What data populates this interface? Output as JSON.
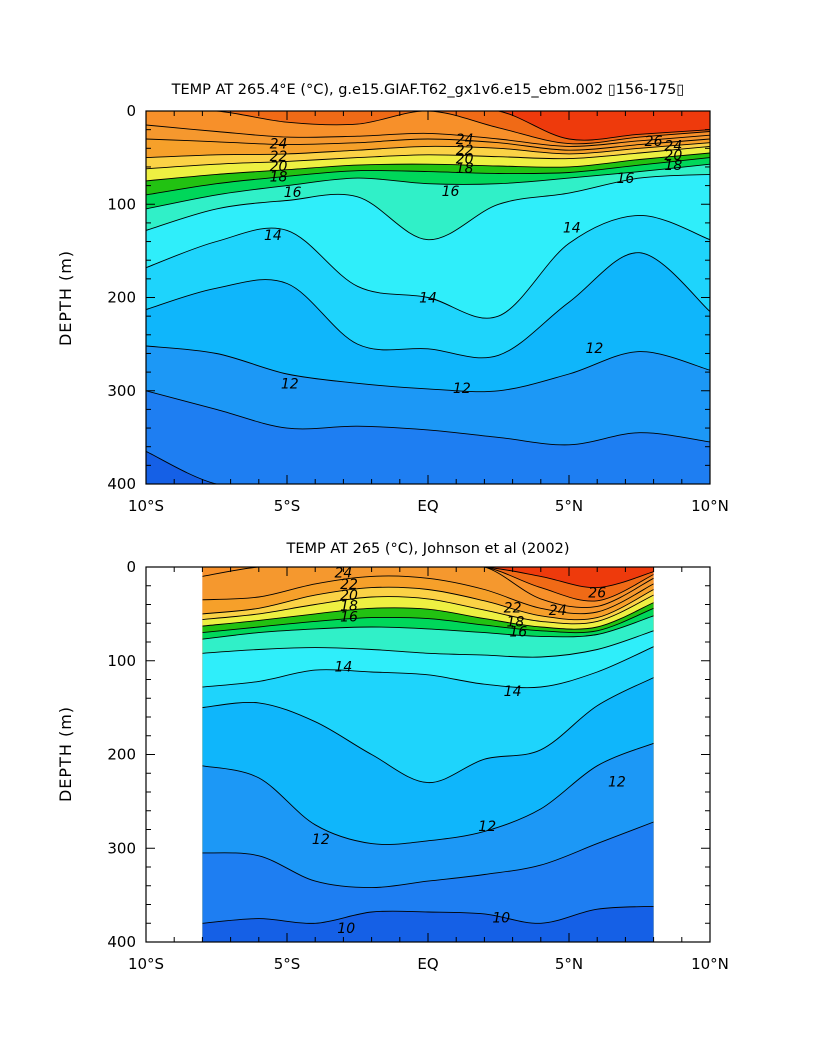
{
  "chart_data": [
    {
      "type": "contour",
      "title": "TEMP AT 265.4°E (°C), g.e15.GIAF.T62_gx1v6.e15_ebm.002 ▯156-175▯",
      "xlabel": "",
      "ylabel": "DEPTH (m)",
      "xlim": [
        -10,
        10
      ],
      "ylim": [
        400,
        0
      ],
      "x_tick_values": [
        -10,
        -5,
        0,
        5,
        10
      ],
      "x_tick_labels": [
        "10°S",
        "5°S",
        "EQ",
        "5°N",
        "10°N"
      ],
      "y_tick_values": [
        0,
        100,
        200,
        300,
        400
      ],
      "y_tick_labels": [
        "0",
        "100",
        "200",
        "300",
        "400"
      ],
      "data_extent_x": [
        -10,
        10
      ],
      "contour_interval": 1,
      "contour_labels": [
        {
          "text": "24",
          "x": -5.3,
          "y": 35
        },
        {
          "text": "22",
          "x": -5.3,
          "y": 48
        },
        {
          "text": "20",
          "x": -5.3,
          "y": 59
        },
        {
          "text": "18",
          "x": -5.3,
          "y": 70
        },
        {
          "text": "16",
          "x": -4.8,
          "y": 87
        },
        {
          "text": "14",
          "x": -5.5,
          "y": 133
        },
        {
          "text": "16",
          "x": 0.8,
          "y": 86
        },
        {
          "text": "24",
          "x": 1.3,
          "y": 30
        },
        {
          "text": "22",
          "x": 1.3,
          "y": 42
        },
        {
          "text": "20",
          "x": 1.3,
          "y": 51
        },
        {
          "text": "18",
          "x": 1.3,
          "y": 61
        },
        {
          "text": "26",
          "x": 8.0,
          "y": 32
        },
        {
          "text": "24",
          "x": 8.7,
          "y": 37
        },
        {
          "text": "20",
          "x": 8.7,
          "y": 47
        },
        {
          "text": "18",
          "x": 8.7,
          "y": 58
        },
        {
          "text": "16",
          "x": 7.0,
          "y": 72
        },
        {
          "text": "14",
          "x": 5.1,
          "y": 125
        },
        {
          "text": "14",
          "x": 0.0,
          "y": 200
        },
        {
          "text": "12",
          "x": 5.9,
          "y": 254
        },
        {
          "text": "12",
          "x": -4.9,
          "y": 292
        },
        {
          "text": "12",
          "x": 1.2,
          "y": 297
        }
      ],
      "temperature_field": {
        "x": [
          -10,
          -7.5,
          -5,
          -2.5,
          0,
          2.5,
          5,
          7.5,
          10
        ],
        "isotherm_depths": [
          {
            "level": 27,
            "depths": [
              0,
              0,
              0,
              0,
              0,
              0,
              30,
              25,
              20
            ]
          },
          {
            "level": 26,
            "depths": [
              0,
              0,
              12,
              14,
              0,
              18,
              35,
              28,
              22
            ]
          },
          {
            "level": 25,
            "depths": [
              15,
              22,
              28,
              27,
              24,
              30,
              38,
              32,
              26
            ]
          },
          {
            "level": 24,
            "depths": [
              30,
              33,
              36,
              34,
              30,
              34,
              42,
              36,
              30
            ]
          },
          {
            "level": 22,
            "depths": [
              50,
              47,
              46,
              42,
              38,
              40,
              46,
              40,
              34
            ]
          },
          {
            "level": 20,
            "depths": [
              62,
              57,
              54,
              50,
              47,
              49,
              51,
              45,
              38
            ]
          },
          {
            "level": 18,
            "depths": [
              75,
              68,
              63,
              58,
              57,
              59,
              60,
              52,
              45
            ]
          },
          {
            "level": 17,
            "depths": [
              90,
              78,
              70,
              64,
              65,
              67,
              66,
              58,
              50
            ]
          },
          {
            "level": 16,
            "depths": [
              105,
              90,
              80,
              72,
              78,
              78,
              72,
              65,
              57
            ]
          },
          {
            "level": 15,
            "depths": [
              128,
              105,
              96,
              92,
              138,
              100,
              88,
              72,
              68
            ]
          },
          {
            "level": 14,
            "depths": [
              168,
              140,
              128,
              188,
              200,
              220,
              142,
              112,
              138
            ]
          },
          {
            "level": 13,
            "depths": [
              213,
              190,
              185,
              250,
              255,
              262,
              205,
              152,
              215
            ]
          },
          {
            "level": 12,
            "depths": [
              252,
              260,
              282,
              292,
              298,
              300,
              282,
              258,
              278
            ]
          },
          {
            "level": 11,
            "depths": [
              300,
              320,
              340,
              338,
              342,
              350,
              358,
              345,
              355
            ]
          },
          {
            "level": 10,
            "depths": [
              365,
              400,
              420,
              420,
              420,
              420,
              420,
              420,
              420
            ]
          }
        ]
      }
    },
    {
      "type": "contour",
      "title": "TEMP AT 265 (°C), Johnson et al (2002)",
      "xlabel": "",
      "ylabel": "DEPTH (m)",
      "xlim": [
        -10,
        10
      ],
      "ylim": [
        400,
        0
      ],
      "x_tick_values": [
        -10,
        -5,
        0,
        5,
        10
      ],
      "x_tick_labels": [
        "10°S",
        "5°S",
        "EQ",
        "5°N",
        "10°N"
      ],
      "y_tick_values": [
        0,
        100,
        200,
        300,
        400
      ],
      "y_tick_labels": [
        "0",
        "100",
        "200",
        "300",
        "400"
      ],
      "data_extent_x": [
        -8,
        8
      ],
      "contour_interval": 1,
      "contour_labels": [
        {
          "text": "24",
          "x": -3.0,
          "y": 6
        },
        {
          "text": "22",
          "x": -2.8,
          "y": 18
        },
        {
          "text": "20",
          "x": -2.8,
          "y": 30
        },
        {
          "text": "18",
          "x": -2.8,
          "y": 41
        },
        {
          "text": "16",
          "x": -2.8,
          "y": 53
        },
        {
          "text": "14",
          "x": -3.0,
          "y": 106
        },
        {
          "text": "14",
          "x": 3.0,
          "y": 132
        },
        {
          "text": "22",
          "x": 3.0,
          "y": 43
        },
        {
          "text": "18",
          "x": 3.1,
          "y": 58
        },
        {
          "text": "16",
          "x": 3.2,
          "y": 69
        },
        {
          "text": "24",
          "x": 4.6,
          "y": 46
        },
        {
          "text": "26",
          "x": 6.0,
          "y": 27
        },
        {
          "text": "12",
          "x": 6.7,
          "y": 229
        },
        {
          "text": "12",
          "x": -3.8,
          "y": 290
        },
        {
          "text": "12",
          "x": 2.1,
          "y": 276
        },
        {
          "text": "10",
          "x": -2.9,
          "y": 385
        },
        {
          "text": "10",
          "x": 2.6,
          "y": 374
        }
      ],
      "temperature_field": {
        "x": [
          -8,
          -6,
          -4,
          -2,
          0,
          2,
          4,
          6,
          8
        ],
        "isotherm_depths": [
          {
            "level": 27,
            "depths": [
              0,
              0,
              0,
              0,
              0,
              0,
              10,
              22,
              5
            ]
          },
          {
            "level": 26,
            "depths": [
              0,
              0,
              0,
              0,
              0,
              0,
              22,
              36,
              8
            ]
          },
          {
            "level": 25,
            "depths": [
              10,
              0,
              0,
              0,
              0,
              0,
              34,
              42,
              12
            ]
          },
          {
            "level": 24,
            "depths": [
              35,
              32,
              18,
              10,
              12,
              24,
              44,
              48,
              18
            ]
          },
          {
            "level": 22,
            "depths": [
              50,
              44,
              30,
              22,
              24,
              36,
              52,
              54,
              24
            ]
          },
          {
            "level": 20,
            "depths": [
              56,
              50,
              40,
              32,
              34,
              46,
              58,
              58,
              30
            ]
          },
          {
            "level": 18,
            "depths": [
              63,
              57,
              50,
              44,
              45,
              55,
              64,
              64,
              38
            ]
          },
          {
            "level": 17,
            "depths": [
              70,
              64,
              58,
              54,
              55,
              62,
              68,
              68,
              44
            ]
          },
          {
            "level": 16,
            "depths": [
              77,
              70,
              66,
              64,
              66,
              70,
              74,
              72,
              52
            ]
          },
          {
            "level": 15,
            "depths": [
              92,
              88,
              86,
              88,
              92,
              94,
              96,
              88,
              68
            ]
          },
          {
            "level": 14,
            "depths": [
              128,
              122,
              110,
              112,
              115,
              125,
              128,
              112,
              85
            ]
          },
          {
            "level": 13,
            "depths": [
              150,
              145,
              165,
              200,
              230,
              205,
              195,
              148,
              118
            ]
          },
          {
            "level": 12,
            "depths": [
              212,
              225,
              275,
              295,
              292,
              282,
              258,
              212,
              188
            ]
          },
          {
            "level": 11,
            "depths": [
              305,
              308,
              335,
              342,
              335,
              328,
              318,
              295,
              272
            ]
          },
          {
            "level": 10,
            "depths": [
              380,
              375,
              380,
              368,
              368,
              370,
              380,
              365,
              362
            ]
          },
          {
            "level": 9,
            "depths": [
              400,
              400,
              400,
              400,
              400,
              400,
              400,
              400,
              400
            ]
          }
        ]
      }
    }
  ]
}
